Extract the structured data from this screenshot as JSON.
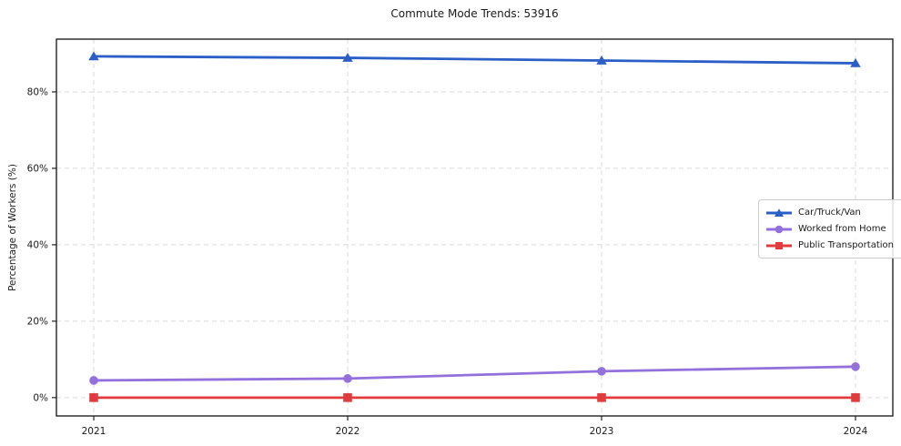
{
  "chart_data": {
    "type": "line",
    "title": "Commute Mode Trends: 53916",
    "xlabel": "",
    "ylabel": "Percentage of Workers (%)",
    "x": [
      "2021",
      "2022",
      "2023",
      "2024"
    ],
    "series": [
      {
        "name": "Car/Truck/Van",
        "color": "#2b5fc7",
        "marker": "triangle",
        "values": [
          89.3,
          88.9,
          88.2,
          87.5
        ]
      },
      {
        "name": "Worked from Home",
        "color": "#9370db",
        "marker": "circle",
        "values": [
          4.5,
          5.0,
          6.9,
          8.1
        ]
      },
      {
        "name": "Public Transportation",
        "color": "#e23b3e",
        "marker": "square",
        "values": [
          0.0,
          0.0,
          0.0,
          0.0
        ]
      }
    ],
    "yticks": [
      {
        "value": 0,
        "label": "0%"
      },
      {
        "value": 20,
        "label": "20%"
      },
      {
        "value": 40,
        "label": "40%"
      },
      {
        "value": 60,
        "label": "60%"
      },
      {
        "value": 80,
        "label": "80%"
      }
    ],
    "ylim": [
      -4.8,
      93.8
    ],
    "grid": true,
    "grid_style": "dashed",
    "legend_position": "center-right"
  },
  "colors": {
    "grid": "#d9d9d9",
    "spine": "#222222",
    "tick": "#222222",
    "text": "#1a1a1a",
    "legend_border": "#cccccc",
    "background": "#ffffff"
  }
}
